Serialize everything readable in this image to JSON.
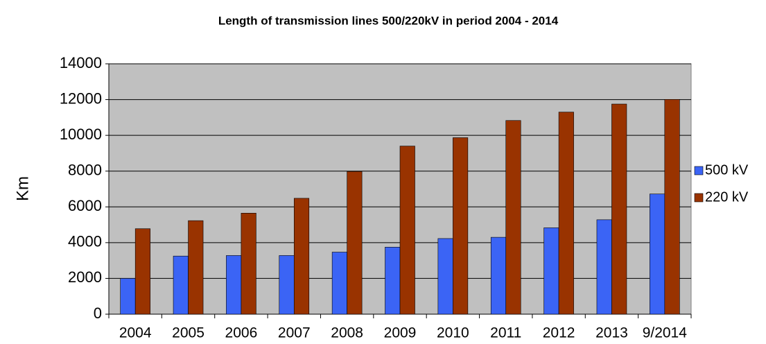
{
  "chart_data": {
    "type": "bar",
    "title": "Length of transmission lines 500/220kV in period 2004 - 2014",
    "y_label": "Km",
    "categories": [
      "2004",
      "2005",
      "2006",
      "2007",
      "2008",
      "2009",
      "2010",
      "2011",
      "2012",
      "2013",
      "9/2014"
    ],
    "series": [
      {
        "name": "500 kV",
        "color": "#3b64f5",
        "values": [
          2000,
          3250,
          3280,
          3280,
          3470,
          3750,
          4230,
          4300,
          4830,
          5280,
          6720
        ]
      },
      {
        "name": "220 kV",
        "color": "#993300",
        "values": [
          4780,
          5230,
          5650,
          6480,
          7980,
          9400,
          9870,
          10830,
          11300,
          11750,
          12010
        ]
      }
    ],
    "ylim": [
      0,
      14000
    ],
    "yticks": [
      0,
      2000,
      4000,
      6000,
      8000,
      10000,
      12000,
      14000
    ],
    "grid": true,
    "legend": "right"
  }
}
